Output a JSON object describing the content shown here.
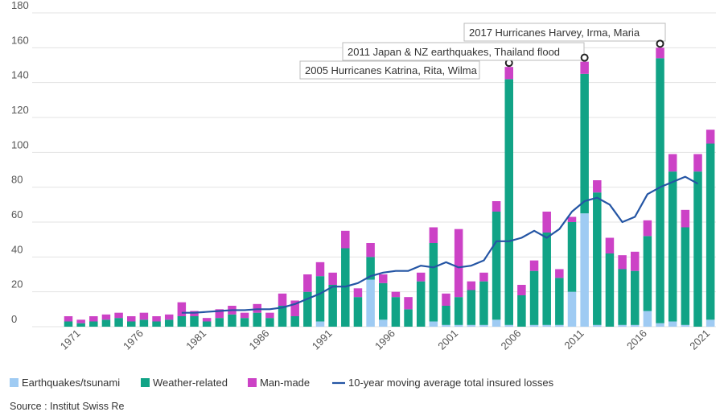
{
  "chart_data": {
    "type": "bar",
    "stacked": true,
    "ylim": [
      0,
      180
    ],
    "yticks": [
      0,
      20,
      40,
      60,
      80,
      100,
      120,
      140,
      160,
      180
    ],
    "categories": [
      1970,
      1971,
      1972,
      1973,
      1974,
      1975,
      1976,
      1977,
      1978,
      1979,
      1980,
      1981,
      1982,
      1983,
      1984,
      1985,
      1986,
      1987,
      1988,
      1989,
      1990,
      1991,
      1992,
      1993,
      1994,
      1995,
      1996,
      1997,
      1998,
      1999,
      2000,
      2001,
      2002,
      2003,
      2004,
      2005,
      2006,
      2007,
      2008,
      2009,
      2010,
      2011,
      2012,
      2013,
      2014,
      2015,
      2016,
      2017,
      2018,
      2019,
      2020,
      2021
    ],
    "xtick_labels": [
      "1971",
      "1976",
      "1981",
      "1986",
      "1991",
      "1996",
      "2001",
      "2006",
      "2011",
      "2016",
      "2021"
    ],
    "series": [
      {
        "name": "Earthquakes/tsunami",
        "color": "#9fcbf3",
        "values": [
          0,
          0,
          0,
          0,
          0,
          0,
          0,
          0,
          0,
          0,
          0,
          0,
          0,
          0,
          0,
          0,
          0,
          0,
          0,
          0,
          3,
          0,
          0,
          0,
          27,
          4,
          0,
          0,
          0,
          3,
          1,
          1,
          1,
          1,
          4,
          1,
          0,
          1,
          1,
          1,
          20,
          65,
          1,
          0,
          1,
          1,
          9,
          2,
          3,
          1,
          0,
          4
        ]
      },
      {
        "name": "Weather-related",
        "color": "#11a386",
        "values": [
          3,
          2,
          3,
          4,
          5,
          3,
          4,
          3,
          4,
          6,
          6,
          3,
          5,
          7,
          5,
          8,
          5,
          12,
          6,
          20,
          26,
          24,
          45,
          17,
          13,
          21,
          17,
          10,
          26,
          45,
          11,
          16,
          20,
          25,
          62,
          141,
          18,
          31,
          53,
          27,
          40,
          80,
          76,
          42,
          32,
          31,
          43,
          152,
          86,
          56,
          89,
          101
        ]
      },
      {
        "name": "Man-made",
        "color": "#cc42c6",
        "values": [
          3,
          2,
          3,
          3,
          3,
          3,
          4,
          3,
          3,
          8,
          3,
          2,
          5,
          5,
          3,
          5,
          3,
          7,
          9,
          10,
          8,
          7,
          10,
          5,
          8,
          5,
          3,
          7,
          5,
          9,
          7,
          39,
          5,
          5,
          6,
          7,
          6,
          6,
          12,
          5,
          3,
          7,
          7,
          9,
          8,
          11,
          9,
          6,
          10,
          10,
          10,
          8
        ]
      }
    ],
    "moving_average": {
      "name": "10-year moving average total insured losses",
      "color": "#2455a4",
      "start_year": 1979,
      "values": [
        8,
        8,
        8.5,
        9,
        9.5,
        9.5,
        10,
        10,
        11,
        13,
        16,
        19,
        23,
        23,
        25,
        29,
        31,
        32,
        32,
        35,
        34,
        37,
        34,
        35,
        38,
        49,
        49,
        51,
        55,
        51,
        56,
        66,
        72,
        74,
        70,
        60,
        63,
        76,
        80,
        83,
        86,
        82
      ]
    },
    "annotations": [
      {
        "year": 2005,
        "text": "2005 Hurricanes Katrina, Rita, Wilma"
      },
      {
        "year": 2011,
        "text": "2011 Japan & NZ earthquakes, Thailand flood"
      },
      {
        "year": 2017,
        "text": "2017 Hurricanes Harvey, Irma, Maria"
      }
    ],
    "legend_position": "bottom-left",
    "grid": true
  },
  "source": "Source : Institut Swiss Re"
}
